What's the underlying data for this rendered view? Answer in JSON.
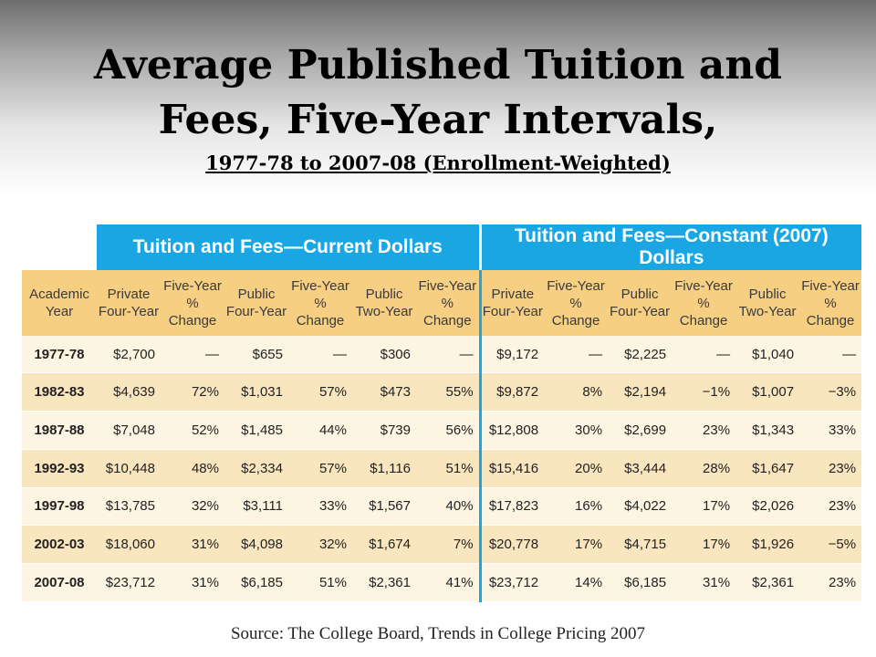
{
  "title": {
    "line1": "Average Published Tuition and",
    "line2": "Fees, Five-Year Intervals,",
    "subtitle": "1977-78 to 2007-08 (Enrollment-Weighted)"
  },
  "table": {
    "group_current": "Tuition and Fees—Current Dollars",
    "group_constant": "Tuition and Fees—Constant (2007) Dollars",
    "columns": [
      "Academic Year",
      "Private Four-Year",
      "Five-Year % Change",
      "Public Four-Year",
      "Five-Year % Change",
      "Public Two-Year",
      "Five-Year % Change",
      "Private Four-Year",
      "Five-Year % Change",
      "Public Four-Year",
      "Five-Year % Change",
      "Public Two-Year",
      "Five-Year % Change"
    ],
    "rows": [
      [
        "1977-78",
        "$2,700",
        "—",
        "$655",
        "—",
        "$306",
        "—",
        "$9,172",
        "—",
        "$2,225",
        "—",
        "$1,040",
        "—"
      ],
      [
        "1982-83",
        "$4,639",
        "72%",
        "$1,031",
        "57%",
        "$473",
        "55%",
        "$9,872",
        "8%",
        "$2,194",
        "−1%",
        "$1,007",
        "−3%"
      ],
      [
        "1987-88",
        "$7,048",
        "52%",
        "$1,485",
        "44%",
        "$739",
        "56%",
        "$12,808",
        "30%",
        "$2,699",
        "23%",
        "$1,343",
        "33%"
      ],
      [
        "1992-93",
        "$10,448",
        "48%",
        "$2,334",
        "57%",
        "$1,116",
        "51%",
        "$15,416",
        "20%",
        "$3,444",
        "28%",
        "$1,647",
        "23%"
      ],
      [
        "1997-98",
        "$13,785",
        "32%",
        "$3,111",
        "33%",
        "$1,567",
        "40%",
        "$17,823",
        "16%",
        "$4,022",
        "17%",
        "$2,026",
        "23%"
      ],
      [
        "2002-03",
        "$18,060",
        "31%",
        "$4,098",
        "32%",
        "$1,674",
        "7%",
        "$20,778",
        "17%",
        "$4,715",
        "17%",
        "$1,926",
        "−5%"
      ],
      [
        "2007-08",
        "$23,712",
        "31%",
        "$6,185",
        "51%",
        "$2,361",
        "41%",
        "$23,712",
        "14%",
        "$6,185",
        "31%",
        "$2,361",
        "23%"
      ]
    ]
  },
  "source": "Source: The College Board, Trends in College Pricing 2007",
  "colors": {
    "band": "#1aa6e3",
    "header": "#f6cf83",
    "row_light": "#fdf4e2",
    "row_dark": "#f9e5be"
  }
}
